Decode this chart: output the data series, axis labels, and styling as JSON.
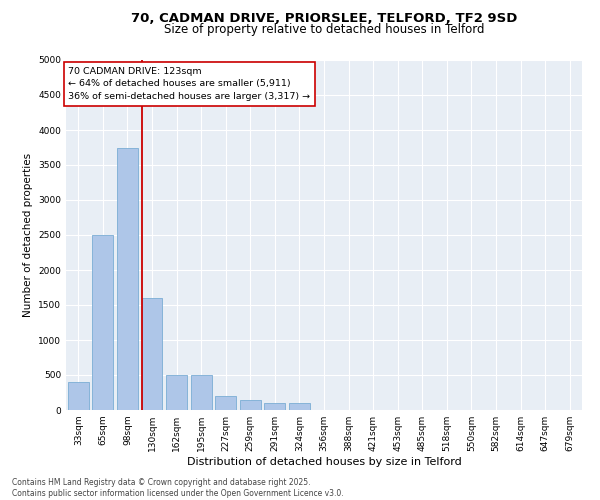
{
  "title_line1": "70, CADMAN DRIVE, PRIORSLEE, TELFORD, TF2 9SD",
  "title_line2": "Size of property relative to detached houses in Telford",
  "xlabel": "Distribution of detached houses by size in Telford",
  "ylabel": "Number of detached properties",
  "categories": [
    "33sqm",
    "65sqm",
    "98sqm",
    "130sqm",
    "162sqm",
    "195sqm",
    "227sqm",
    "259sqm",
    "291sqm",
    "324sqm",
    "356sqm",
    "388sqm",
    "421sqm",
    "453sqm",
    "485sqm",
    "518sqm",
    "550sqm",
    "582sqm",
    "614sqm",
    "647sqm",
    "679sqm"
  ],
  "values": [
    400,
    2500,
    3750,
    1600,
    500,
    500,
    200,
    150,
    100,
    100,
    0,
    0,
    0,
    0,
    0,
    0,
    0,
    0,
    0,
    0,
    0
  ],
  "bar_color": "#aec6e8",
  "bar_edgecolor": "#7aadd4",
  "vline_color": "#cc0000",
  "vline_index": 2.575,
  "annotation_text": "70 CADMAN DRIVE: 123sqm\n← 64% of detached houses are smaller (5,911)\n36% of semi-detached houses are larger (3,317) →",
  "annotation_box_edgecolor": "#cc0000",
  "annotation_box_facecolor": "white",
  "ylim": [
    0,
    5000
  ],
  "yticks": [
    0,
    500,
    1000,
    1500,
    2000,
    2500,
    3000,
    3500,
    4000,
    4500,
    5000
  ],
  "background_color": "#e8eef5",
  "grid_color": "white",
  "footer_line1": "Contains HM Land Registry data © Crown copyright and database right 2025.",
  "footer_line2": "Contains public sector information licensed under the Open Government Licence v3.0.",
  "title_fontsize": 9.5,
  "subtitle_fontsize": 8.5,
  "xlabel_fontsize": 8,
  "ylabel_fontsize": 7.5,
  "tick_fontsize": 6.5,
  "annot_fontsize": 6.8,
  "footer_fontsize": 5.5
}
